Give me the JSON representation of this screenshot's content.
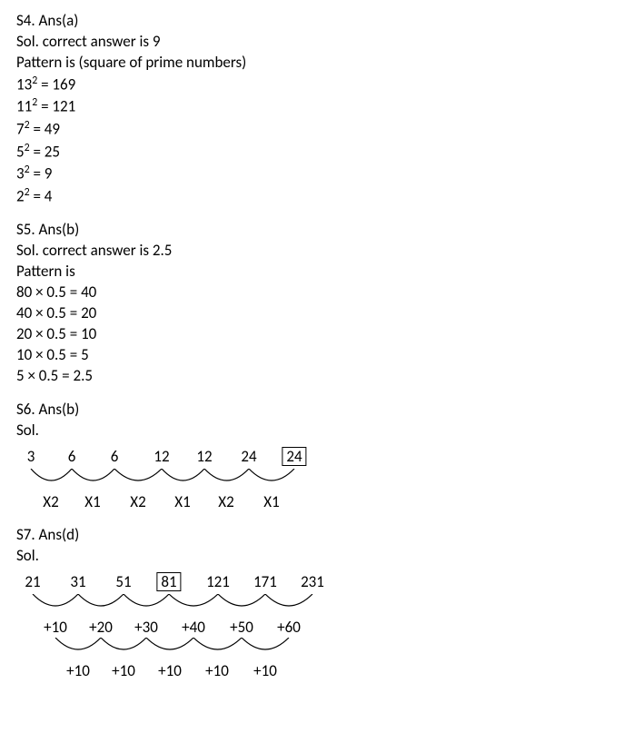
{
  "s4": {
    "header": "S4. Ans(a)",
    "sol": "Sol. correct answer is 9",
    "pattern": "Pattern is (square of prime numbers)",
    "lines": [
      {
        "base": "13",
        "rhs": " = 169"
      },
      {
        "base": "11",
        "rhs": " = 121"
      },
      {
        "base": "7",
        "rhs": " = 49"
      },
      {
        "base": "5",
        "rhs": " = 25"
      },
      {
        "base": "3",
        "rhs": " = 9"
      },
      {
        "base": "2",
        "rhs": " = 4"
      }
    ],
    "sup": "2"
  },
  "s5": {
    "header": "S5. Ans(b)",
    "sol": "Sol.  correct answer is 2.5",
    "pattern": "Pattern is",
    "lines": [
      "80 × 0.5 = 40",
      "40 × 0.5 = 20",
      "20 × 0.5 = 10",
      "10 × 0.5 = 5",
      "5 × 0.5 = 2.5"
    ]
  },
  "s6": {
    "header": "S6. Ans(b)",
    "sol": "Sol.",
    "diagram": {
      "numbers": [
        "3",
        "6",
        "6",
        "12",
        "12",
        "24",
        "24"
      ],
      "boxed_index": 6,
      "x": [
        20,
        65,
        112,
        164,
        211,
        260,
        310
      ],
      "ops": [
        "X2",
        "X1",
        "X2",
        "X1",
        "X2",
        "X1"
      ],
      "op_x": [
        42,
        88,
        138,
        187,
        235,
        285
      ],
      "arc_color": "#000",
      "arc_width": 1.2,
      "fontsize": 17
    }
  },
  "s7": {
    "header": "S7. Ans(d)",
    "sol": "Sol.",
    "diagram": {
      "numbers": [
        "21",
        "31",
        "51",
        "81",
        "121",
        "171",
        "231"
      ],
      "boxed_index": 3,
      "x": [
        22,
        72,
        122,
        172,
        226,
        278,
        330
      ],
      "ops1": [
        "+10",
        "+20",
        "+30",
        "+40",
        "+50",
        "+60"
      ],
      "op1_x": [
        47,
        97,
        147,
        199,
        252,
        304
      ],
      "ops2": [
        "+10",
        "+10",
        "+10",
        "+10",
        "+10"
      ],
      "op2_x": [
        72,
        122,
        173,
        225,
        278
      ],
      "arc_color": "#000",
      "arc_width": 1.2,
      "fontsize": 17
    }
  },
  "colors": {
    "text": "#000000",
    "background": "#ffffff",
    "box_border": "#000000"
  }
}
